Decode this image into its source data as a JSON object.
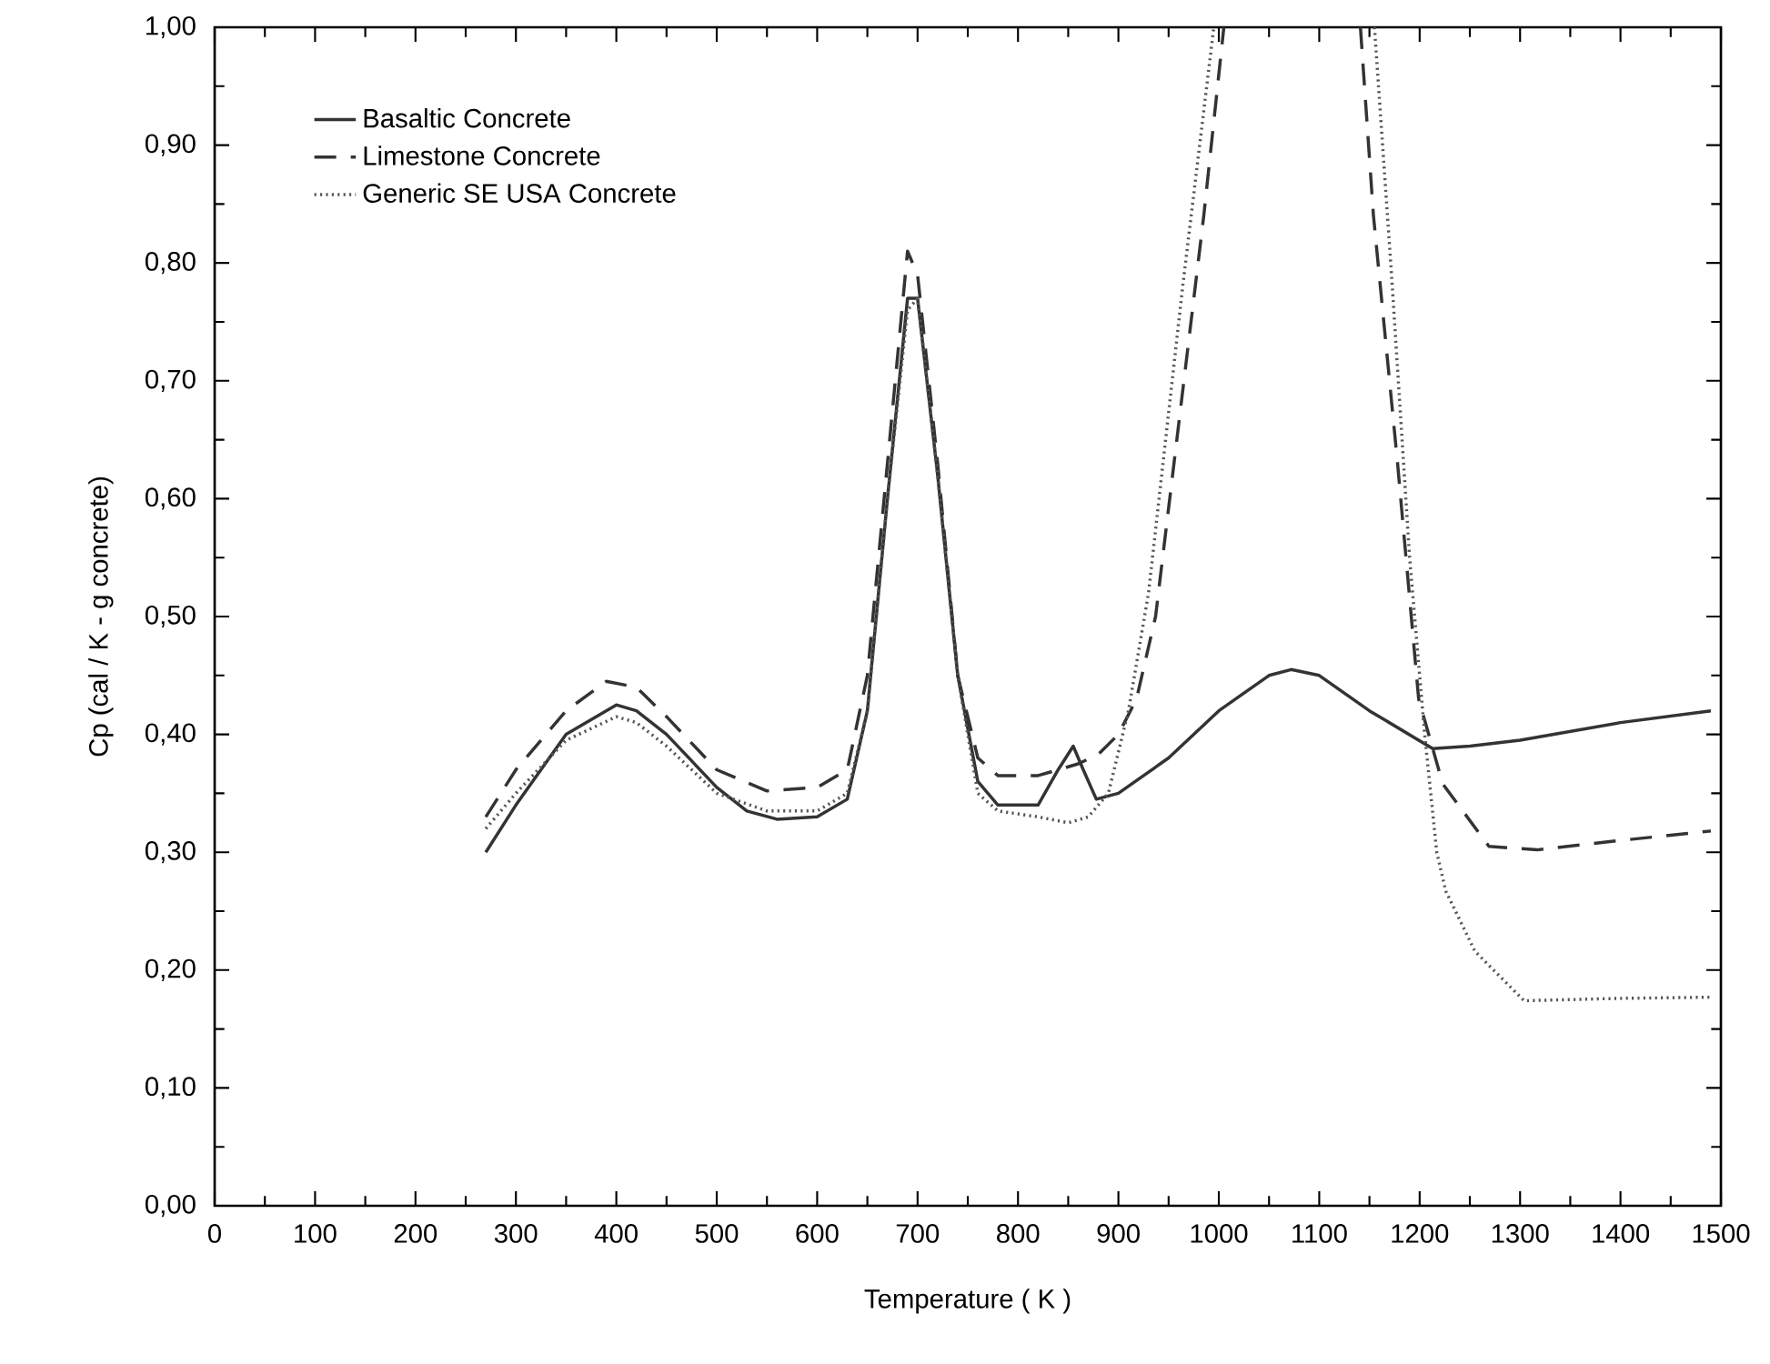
{
  "chart_data": {
    "type": "line",
    "xlabel": "Temperature ( K )",
    "ylabel": "Cp (cal / K - g concrete)",
    "xlim": [
      0,
      1500
    ],
    "ylim": [
      0,
      1
    ],
    "xticks": [
      0,
      100,
      200,
      300,
      400,
      500,
      600,
      700,
      800,
      900,
      1000,
      1100,
      1200,
      1300,
      1400,
      1500
    ],
    "yticks": [
      {
        "value": 0,
        "label": "0,00"
      },
      {
        "value": 0.1,
        "label": "0,10"
      },
      {
        "value": 0.2,
        "label": "0,20"
      },
      {
        "value": 0.3,
        "label": "0,30"
      },
      {
        "value": 0.4,
        "label": "0,40"
      },
      {
        "value": 0.5,
        "label": "0,50"
      },
      {
        "value": 0.6,
        "label": "0,60"
      },
      {
        "value": 0.7,
        "label": "0,70"
      },
      {
        "value": 0.8,
        "label": "0,80"
      },
      {
        "value": 0.9,
        "label": "0,90"
      },
      {
        "value": 1.0,
        "label": "1,00"
      }
    ],
    "grid": false,
    "legend": "top left",
    "marker": "none",
    "series": [
      {
        "name": "Basaltic Concrete",
        "color": "#333333",
        "line_style": "solid",
        "x": [
          270,
          300,
          350,
          400,
          420,
          450,
          500,
          530,
          560,
          600,
          630,
          650,
          670,
          690,
          700,
          720,
          740,
          760,
          780,
          820,
          840,
          855,
          865,
          878,
          900,
          950,
          1000,
          1050,
          1072,
          1100,
          1150,
          1213,
          1250,
          1300,
          1400,
          1490
        ],
        "values": [
          0.3,
          0.34,
          0.4,
          0.425,
          0.42,
          0.4,
          0.355,
          0.335,
          0.328,
          0.33,
          0.345,
          0.42,
          0.6,
          0.77,
          0.77,
          0.62,
          0.45,
          0.36,
          0.34,
          0.34,
          0.37,
          0.39,
          0.37,
          0.345,
          0.35,
          0.38,
          0.42,
          0.45,
          0.455,
          0.45,
          0.42,
          0.388,
          0.39,
          0.395,
          0.41,
          0.42
        ]
      },
      {
        "name": "Limestone Concrete",
        "color": "#333333",
        "line_style": "dashed",
        "x": [
          270,
          300,
          350,
          390,
          420,
          450,
          500,
          550,
          600,
          630,
          650,
          670,
          690,
          700,
          720,
          740,
          760,
          780,
          820,
          860,
          880,
          900,
          918,
          937,
          985,
          1005,
          1070,
          1141,
          1154,
          1178,
          1199,
          1223,
          1269,
          1317,
          1400,
          1490
        ],
        "values": [
          0.33,
          0.37,
          0.42,
          0.445,
          0.44,
          0.415,
          0.37,
          0.352,
          0.355,
          0.37,
          0.45,
          0.63,
          0.81,
          0.79,
          0.63,
          0.45,
          0.38,
          0.365,
          0.365,
          0.375,
          0.383,
          0.4,
          0.43,
          0.5,
          0.84,
          1.0,
          null,
          1.0,
          0.84,
          0.63,
          0.43,
          0.358,
          0.305,
          0.302,
          0.31,
          0.318
        ]
      },
      {
        "name": "Generic SE USA Concrete",
        "color": "#555555",
        "line_style": "dotted",
        "x": [
          270,
          300,
          350,
          400,
          420,
          450,
          500,
          550,
          600,
          630,
          650,
          670,
          690,
          700,
          720,
          740,
          760,
          780,
          820,
          850,
          870,
          890,
          910,
          930,
          964,
          995,
          1070,
          1155,
          1172,
          1190,
          1205,
          1217,
          1226,
          1255,
          1304,
          1400,
          1490
        ],
        "values": [
          0.32,
          0.35,
          0.395,
          0.415,
          0.41,
          0.39,
          0.35,
          0.335,
          0.335,
          0.35,
          0.42,
          0.6,
          0.76,
          0.77,
          0.62,
          0.45,
          0.35,
          0.335,
          0.33,
          0.325,
          0.33,
          0.35,
          0.42,
          0.52,
          0.78,
          1.0,
          null,
          1.0,
          0.79,
          0.55,
          0.4,
          0.3,
          0.267,
          0.216,
          0.174,
          0.176,
          0.177
        ]
      }
    ]
  }
}
